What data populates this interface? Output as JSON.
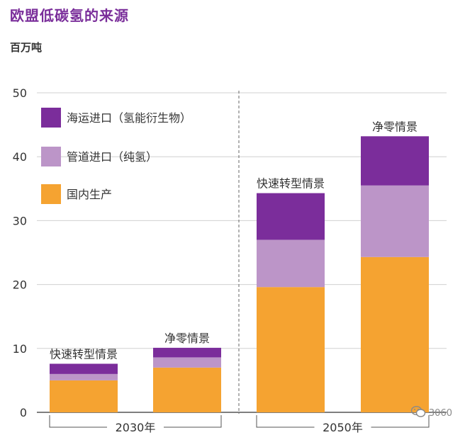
{
  "title": "欧盟低碳氢的来源",
  "unit_label": "百万吨",
  "watermark": "3060",
  "chart_data": {
    "type": "bar",
    "stacked": true,
    "categories": [
      "快速转型情景",
      "净零情景",
      "快速转型情景",
      "净零情景"
    ],
    "groups": [
      {
        "label": "2030年",
        "categories": [
          "快速转型情景",
          "净零情景"
        ]
      },
      {
        "label": "2050年",
        "categories": [
          "快速转型情景",
          "净零情景"
        ]
      }
    ],
    "series": [
      {
        "name": "国内生产",
        "color": "#f5a331",
        "values": [
          5.0,
          7.0,
          19.6,
          24.3
        ]
      },
      {
        "name": "管道进口（纯氢）",
        "color": "#bc95c8",
        "values": [
          1.0,
          1.6,
          7.4,
          11.2
        ]
      },
      {
        "name": "海运进口（氢能衍生物）",
        "color": "#7b2d9b",
        "values": [
          1.6,
          1.5,
          7.3,
          7.7
        ]
      }
    ],
    "legend_order": [
      "海运进口（氢能衍生物）",
      "管道进口（纯氢）",
      "国内生产"
    ],
    "legend_position": "top-left",
    "ylim": [
      0,
      50
    ],
    "yticks": [
      "0",
      "10",
      "20",
      "30",
      "40",
      "50"
    ],
    "grid": true
  }
}
